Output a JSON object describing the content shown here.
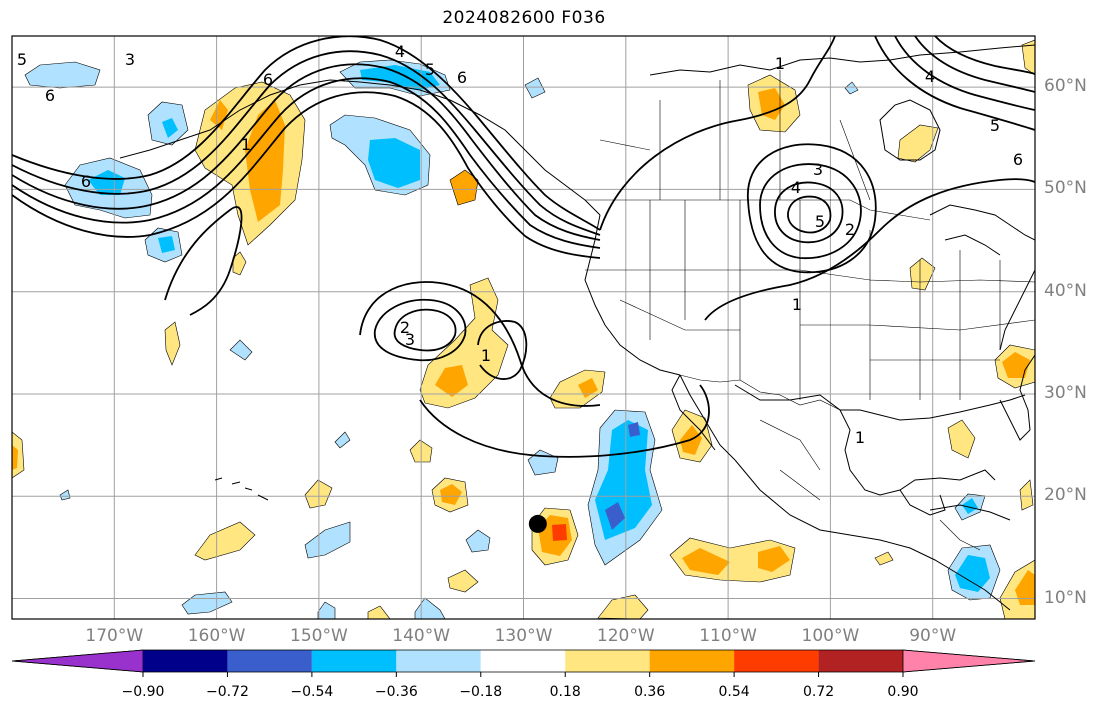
{
  "title": "2024082600 F036",
  "map": {
    "projection": "PlateCarree",
    "extent": {
      "lon": [
        -180,
        -80
      ],
      "lat": [
        8,
        65
      ]
    },
    "gridlines": true,
    "gridline_color": "#a0a0a0",
    "lat_labels": [
      "60°N",
      "50°N",
      "40°N",
      "30°N",
      "20°N",
      "10°N"
    ],
    "lon_labels": [
      "170°W",
      "160°W",
      "150°W",
      "140°W",
      "130°W",
      "120°W",
      "110°W",
      "100°W",
      "90°W"
    ],
    "marker": {
      "lon": -128.6,
      "lat": 17.3,
      "color": "#000000"
    },
    "contour_labels": [
      "6",
      "5",
      "4",
      "3",
      "2",
      "1"
    ]
  },
  "colorbar": {
    "ticks": [
      "−0.90",
      "−0.72",
      "−0.54",
      "−0.36",
      "−0.18",
      "0.18",
      "0.36",
      "0.54",
      "0.72",
      "0.90"
    ],
    "colors": [
      "#9932cc",
      "#00008b",
      "#3a5fcd",
      "#00bfff",
      "#b0e2ff",
      "#ffffff",
      "#ffe680",
      "#ffa500",
      "#ff3c00",
      "#b22222",
      "#ff82ab"
    ],
    "extend": "both"
  }
}
